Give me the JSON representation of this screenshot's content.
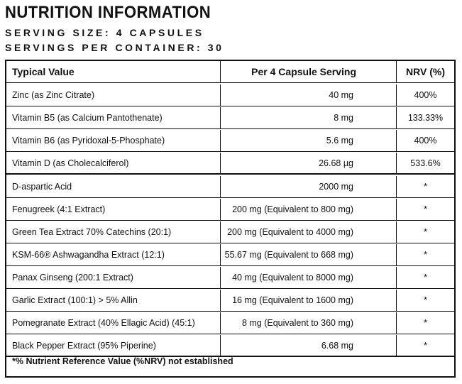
{
  "title": "NUTRITION INFORMATION",
  "serving_size": "SERVING SIZE: 4 CAPSULES",
  "servings_per_container": "SERVINGS PER CONTAINER: 30",
  "table": {
    "headers": [
      "Typical Value",
      "Per 4 Capsule Serving",
      "NRV (%)"
    ],
    "rows": [
      [
        "Zinc (as Zinc Citrate)",
        "40 mg",
        "400%"
      ],
      [
        "Vitamin B5 (as Calcium Pantothenate)",
        "8 mg",
        "133.33%"
      ],
      [
        "Vitamin B6 (as Pyridoxal-5-Phosphate)",
        "5.6 mg",
        "400%"
      ],
      [
        "Vitamin D (as Cholecalciferol)",
        "26.68 µg",
        "533.6%"
      ],
      [
        "D-aspartic Acid",
        "2000 mg",
        "*"
      ],
      [
        "Fenugreek (4:1 Extract)",
        "200 mg (Equivalent to 800 mg)",
        "*"
      ],
      [
        "Green Tea Extract 70% Catechins (20:1)",
        "200 mg (Equivalent to 4000 mg)",
        "*"
      ],
      [
        "KSM-66® Ashwagandha Extract (12:1)",
        "55.67 mg (Equivalent to 668 mg)",
        "*"
      ],
      [
        "Panax Ginseng (200:1 Extract)",
        "40 mg (Equivalent to 8000 mg)",
        "*"
      ],
      [
        "Garlic Extract (100:1) > 5% Allin",
        "16 mg (Equivalent to 1600 mg)",
        "*"
      ],
      [
        "Pomegranate Extract (40% Ellagic Acid) (45:1)",
        "8 mg (Equivalent to 360 mg)",
        "*"
      ],
      [
        "Black Pepper Extract (95% Piperine)",
        "6.68 mg",
        "*"
      ]
    ],
    "footnote": "*% Nutrient Reference Value (%NRV) not established"
  }
}
